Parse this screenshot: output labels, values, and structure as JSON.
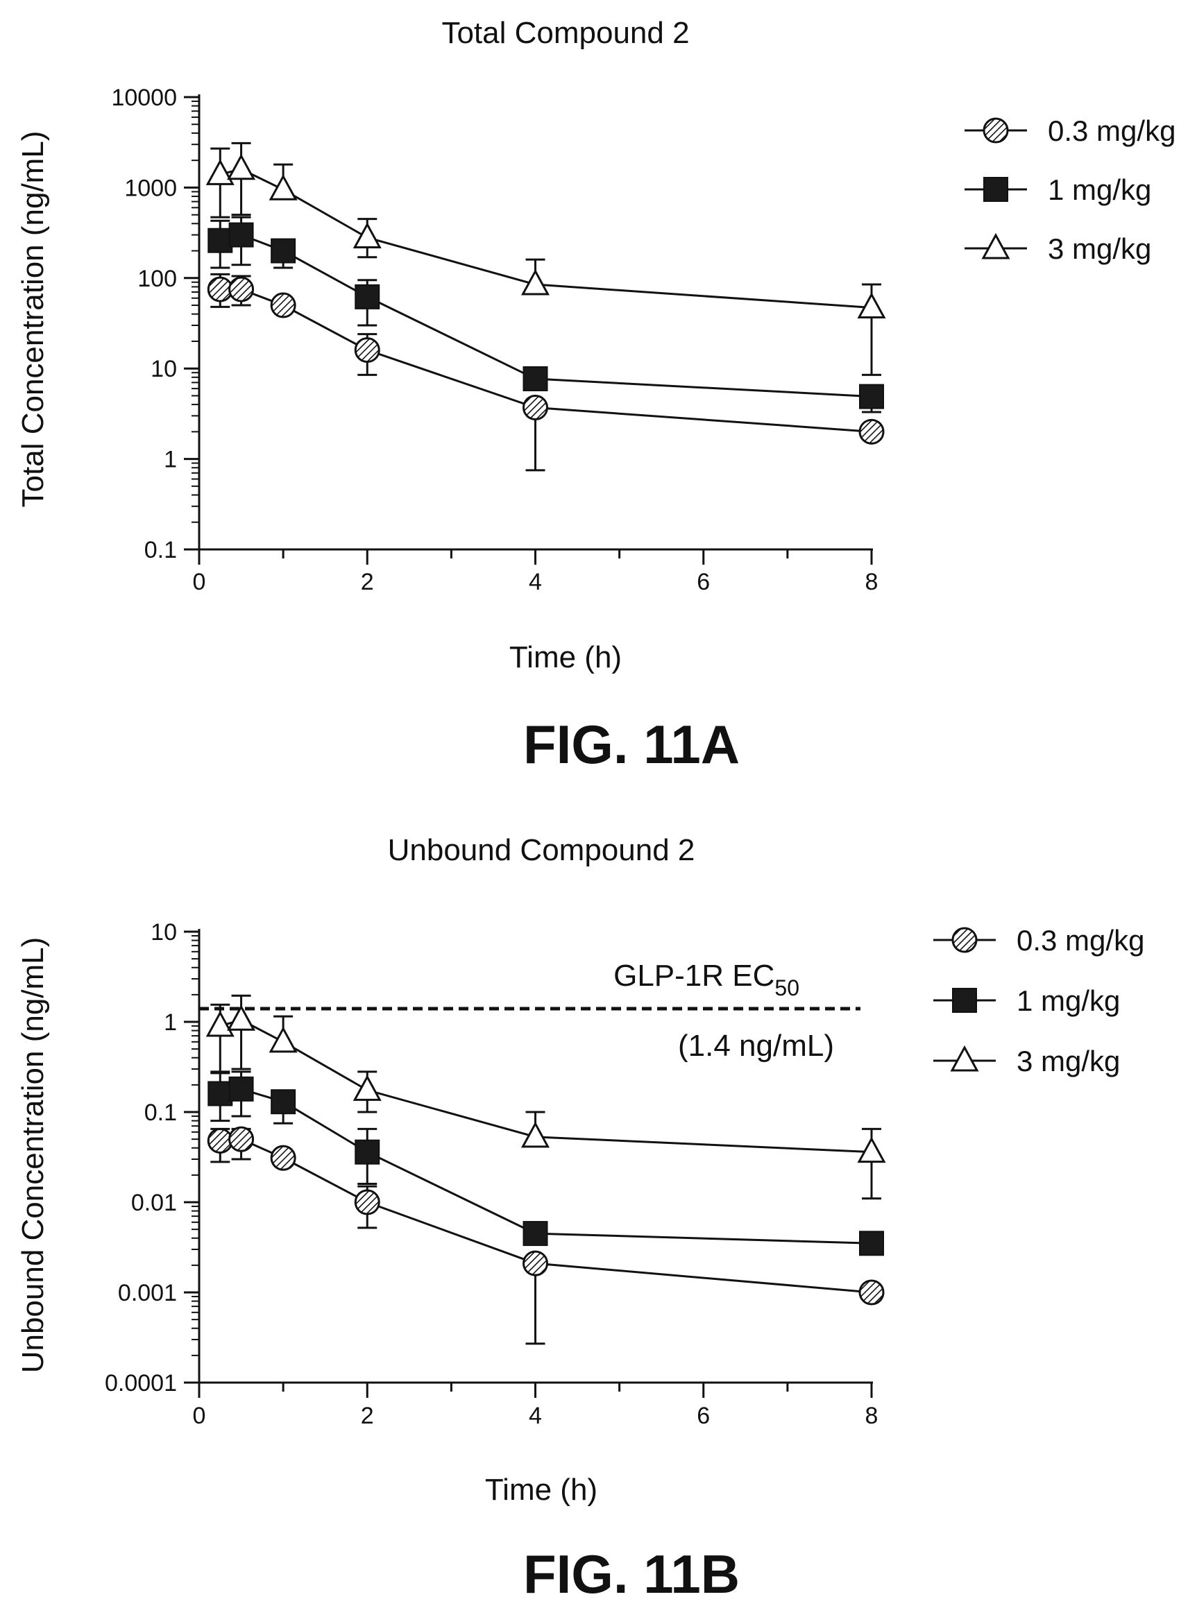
{
  "chart_data": [
    {
      "type": "line",
      "title": "Total Compound 2",
      "xlabel": "Time (h)",
      "ylabel": "Total Concentration (ng/mL)",
      "yscale": "log",
      "ylim": [
        0.1,
        10000
      ],
      "xlim": [
        0,
        8
      ],
      "xticks": [
        "0",
        "2",
        "4",
        "6",
        "8"
      ],
      "yticks": [
        "0.1",
        "1",
        "10",
        "100",
        "1000",
        "10000"
      ],
      "fig_label": "FIG. 11A",
      "legend_position": "top-right",
      "series": [
        {
          "name": "0.3 mg/kg",
          "marker": "hatched-circle",
          "x": [
            0.25,
            0.5,
            1,
            2,
            4,
            8
          ],
          "y": [
            75,
            75,
            50,
            16,
            3.7,
            2.0
          ],
          "err_high": [
            110,
            105,
            null,
            24,
            null,
            null
          ],
          "err_low": [
            48,
            50,
            null,
            8.5,
            0.75,
            null
          ]
        },
        {
          "name": "1 mg/kg",
          "marker": "filled-square",
          "x": [
            0.25,
            0.5,
            1,
            2,
            4,
            8
          ],
          "y": [
            260,
            300,
            200,
            62,
            7.7,
            4.9
          ],
          "err_high": [
            430,
            470,
            null,
            95,
            null,
            null
          ],
          "err_low": [
            130,
            140,
            130,
            30,
            null,
            3.3
          ]
        },
        {
          "name": "3 mg/kg",
          "marker": "open-triangle",
          "x": [
            0.25,
            0.5,
            1,
            2,
            4,
            8
          ],
          "y": [
            1400,
            1600,
            950,
            280,
            85,
            47
          ],
          "err_high": [
            2700,
            3100,
            1800,
            450,
            160,
            85
          ],
          "err_low": [
            470,
            500,
            null,
            170,
            null,
            8.5
          ]
        }
      ]
    },
    {
      "type": "line",
      "title": "Unbound Compound 2",
      "xlabel": "Time (h)",
      "ylabel": "Unbound Concentration (ng/mL)",
      "yscale": "log",
      "ylim": [
        0.0001,
        10
      ],
      "xlim": [
        0,
        8
      ],
      "xticks": [
        "0",
        "2",
        "4",
        "6",
        "8"
      ],
      "yticks": [
        "0.0001",
        "0.001",
        "0.01",
        "0.1",
        "1",
        "10"
      ],
      "fig_label": "FIG. 11B",
      "legend_position": "top-right",
      "reference_line": {
        "y": 1.4,
        "label_main": "GLP-1R EC",
        "label_sub": "50",
        "label_value": "(1.4 ng/mL)"
      },
      "series": [
        {
          "name": "0.3 mg/kg",
          "marker": "hatched-circle",
          "x": [
            0.25,
            0.5,
            1,
            2,
            4,
            8
          ],
          "y": [
            0.048,
            0.05,
            0.031,
            0.01,
            0.0021,
            0.001
          ],
          "err_high": [
            0.065,
            0.065,
            null,
            0.015,
            null,
            null
          ],
          "err_low": [
            0.028,
            0.03,
            null,
            0.0052,
            0.00027,
            null
          ]
        },
        {
          "name": "1 mg/kg",
          "marker": "filled-square",
          "x": [
            0.25,
            0.5,
            1,
            2,
            4,
            8
          ],
          "y": [
            0.16,
            0.18,
            0.13,
            0.036,
            0.0045,
            0.0035
          ],
          "err_high": [
            0.27,
            0.28,
            null,
            0.065,
            null,
            null
          ],
          "err_low": [
            0.08,
            0.09,
            0.075,
            0.016,
            null,
            null
          ]
        },
        {
          "name": "3 mg/kg",
          "marker": "open-triangle",
          "x": [
            0.25,
            0.5,
            1,
            2,
            4,
            8
          ],
          "y": [
            0.9,
            1.05,
            0.6,
            0.175,
            0.053,
            0.036
          ],
          "err_high": [
            1.55,
            1.95,
            1.15,
            0.28,
            0.1,
            0.065
          ],
          "err_low": [
            0.28,
            0.3,
            null,
            0.1,
            null,
            0.011
          ]
        }
      ]
    }
  ]
}
